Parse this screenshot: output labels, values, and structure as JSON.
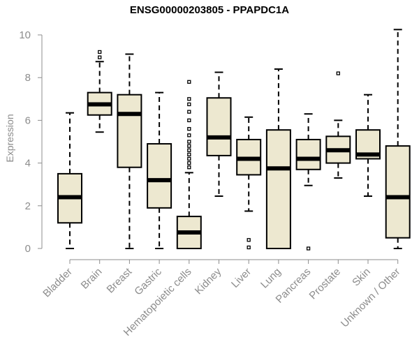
{
  "chart_data": {
    "type": "boxplot",
    "title": "ENSG00000203805 - PPAPDC1A",
    "ylabel": "Expression",
    "xlabel": "",
    "ylim": [
      0,
      10.4
    ],
    "yticks": [
      0,
      2,
      4,
      6,
      8,
      10
    ],
    "box_color": "#ede8d0",
    "categories": [
      "Bladder",
      "Brain",
      "Breast",
      "Gastric",
      "Hematopoietic cells",
      "Kidney",
      "Liver",
      "Lung",
      "Pancreas",
      "Prostate",
      "Skin",
      "Unknown / Other"
    ],
    "boxes": [
      {
        "min": 0.0,
        "q1": 1.2,
        "median": 2.4,
        "q3": 3.5,
        "max": 6.35,
        "outliers": []
      },
      {
        "min": 5.45,
        "q1": 6.25,
        "median": 6.75,
        "q3": 7.3,
        "max": 8.75,
        "outliers": [
          8.95,
          9.2
        ]
      },
      {
        "min": 0.0,
        "q1": 3.8,
        "median": 6.3,
        "q3": 7.2,
        "max": 9.1,
        "outliers": []
      },
      {
        "min": 0.0,
        "q1": 1.9,
        "median": 3.2,
        "q3": 4.9,
        "max": 7.3,
        "outliers": []
      },
      {
        "min": 0.0,
        "q1": 0.0,
        "median": 0.75,
        "q3": 1.5,
        "max": 3.55,
        "outliers": [
          3.8,
          4.0,
          4.2,
          4.4,
          4.6,
          4.8,
          5.0,
          5.3,
          5.6,
          6.0,
          6.4,
          6.75,
          7.0,
          7.8
        ]
      },
      {
        "min": 2.45,
        "q1": 4.35,
        "median": 5.2,
        "q3": 7.05,
        "max": 8.25,
        "outliers": []
      },
      {
        "min": 1.75,
        "q1": 3.45,
        "median": 4.2,
        "q3": 5.1,
        "max": 6.15,
        "outliers": [
          0.4,
          0.05
        ]
      },
      {
        "min": 0.0,
        "q1": 0.0,
        "median": 3.75,
        "q3": 5.55,
        "max": 8.4,
        "outliers": []
      },
      {
        "min": 2.95,
        "q1": 3.7,
        "median": 4.2,
        "q3": 5.1,
        "max": 6.3,
        "outliers": [
          0.0
        ]
      },
      {
        "min": 3.3,
        "q1": 4.0,
        "median": 4.6,
        "q3": 5.25,
        "max": 6.0,
        "outliers": [
          8.2
        ]
      },
      {
        "min": 2.45,
        "q1": 4.2,
        "median": 4.4,
        "q3": 5.55,
        "max": 7.2,
        "outliers": []
      },
      {
        "min": 0.0,
        "q1": 0.5,
        "median": 2.4,
        "q3": 4.8,
        "max": 10.25,
        "outliers": []
      }
    ]
  }
}
